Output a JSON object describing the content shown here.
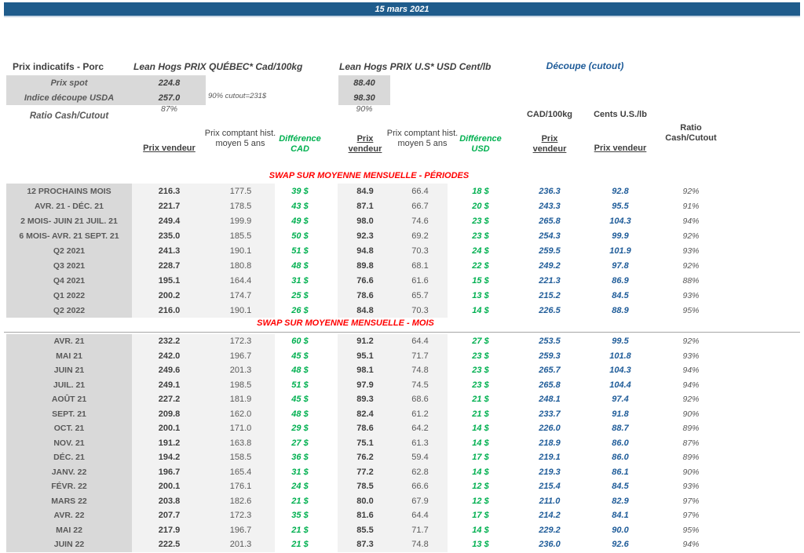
{
  "title_bar": {
    "date": "15 mars 2021"
  },
  "header": {
    "title": "Prix indicatifs - Porc",
    "quebec_title": "Lean Hogs PRIX QUÉBEC* Cad/100kg",
    "us_title": "Lean Hogs PRIX U.S* USD Cent/lb",
    "cutout_title": "Découpe (cutout)",
    "rows": [
      {
        "label": "Prix spot",
        "cad": "224.8",
        "usd": "88.40"
      },
      {
        "label": "Indice découpe USDA",
        "cad": "257.0",
        "usd": "98.30"
      }
    ],
    "cutout_note": "90% cutout=231$",
    "ratio_label": "Ratio Cash/Cutout",
    "ratio_cad": "87%",
    "ratio_usd": "90%"
  },
  "columns": {
    "cad_unit": "CAD/100kg",
    "us_unit": "Cents U.S./lb",
    "prix_vendeur": "Prix vendeur",
    "prix_comptant": "Prix comptant hist. moyen 5 ans",
    "difference_cad": "Différence CAD",
    "difference_usd": "Différence USD",
    "ratio": "Ratio Cash/Cutout"
  },
  "sections": [
    {
      "header": "SWAP SUR MOYENNE MENSUELLE - PÉRIODES",
      "rows": [
        [
          "12 PROCHAINS MOIS",
          "216.3",
          "177.5",
          "39 $",
          "84.9",
          "66.4",
          "18 $",
          "236.3",
          "92.8",
          "92%"
        ],
        [
          "AVR. 21 -  DÉC. 21",
          "221.7",
          "178.5",
          "43 $",
          "87.1",
          "66.7",
          "20 $",
          "243.3",
          "95.5",
          "91%"
        ],
        [
          "2 MOIS- JUIN 21 JUIL. 21",
          "249.4",
          "199.9",
          "49 $",
          "98.0",
          "74.6",
          "23 $",
          "265.8",
          "104.3",
          "94%"
        ],
        [
          "6 MOIS- AVR. 21 SEPT. 21",
          "235.0",
          "185.5",
          "50 $",
          "92.3",
          "69.2",
          "23 $",
          "254.3",
          "99.9",
          "92%"
        ],
        [
          "Q2 2021",
          "241.3",
          "190.1",
          "51 $",
          "94.8",
          "70.3",
          "24 $",
          "259.5",
          "101.9",
          "93%"
        ],
        [
          "Q3 2021",
          "228.7",
          "180.8",
          "48 $",
          "89.8",
          "68.1",
          "22 $",
          "249.2",
          "97.8",
          "92%"
        ],
        [
          "Q4 2021",
          "195.1",
          "164.4",
          "31 $",
          "76.6",
          "61.6",
          "15 $",
          "221.3",
          "86.9",
          "88%"
        ],
        [
          "Q1 2022",
          "200.2",
          "174.7",
          "25 $",
          "78.6",
          "65.7",
          "13 $",
          "215.2",
          "84.5",
          "93%"
        ],
        [
          "Q2 2022",
          "216.0",
          "190.1",
          "26 $",
          "84.8",
          "70.3",
          "14 $",
          "226.5",
          "88.9",
          "95%"
        ]
      ]
    },
    {
      "header": "SWAP SUR MOYENNE MENSUELLE - MOIS",
      "rows": [
        [
          "AVR. 21",
          "232.2",
          "172.3",
          "60 $",
          "91.2",
          "64.4",
          "27 $",
          "253.5",
          "99.5",
          "92%"
        ],
        [
          "MAI 21",
          "242.0",
          "196.7",
          "45 $",
          "95.1",
          "71.7",
          "23 $",
          "259.3",
          "101.8",
          "93%"
        ],
        [
          "JUIN 21",
          "249.6",
          "201.3",
          "48 $",
          "98.1",
          "74.8",
          "23 $",
          "265.7",
          "104.3",
          "94%"
        ],
        [
          "JUIL. 21",
          "249.1",
          "198.5",
          "51 $",
          "97.9",
          "74.5",
          "23 $",
          "265.8",
          "104.4",
          "94%"
        ],
        [
          "AOÛT 21",
          "227.2",
          "181.9",
          "45 $",
          "89.3",
          "68.6",
          "21 $",
          "248.1",
          "97.4",
          "92%"
        ],
        [
          "SEPT. 21",
          "209.8",
          "162.0",
          "48 $",
          "82.4",
          "61.2",
          "21 $",
          "233.7",
          "91.8",
          "90%"
        ],
        [
          "OCT. 21",
          "200.1",
          "171.0",
          "29 $",
          "78.6",
          "64.2",
          "14 $",
          "226.0",
          "88.7",
          "89%"
        ],
        [
          "NOV. 21",
          "191.2",
          "163.8",
          "27 $",
          "75.1",
          "61.3",
          "14 $",
          "218.9",
          "86.0",
          "87%"
        ],
        [
          "DÉC. 21",
          "194.2",
          "158.5",
          "36 $",
          "76.2",
          "59.4",
          "17 $",
          "219.1",
          "86.0",
          "89%"
        ],
        [
          "JANV. 22",
          "196.7",
          "165.4",
          "31 $",
          "77.2",
          "62.8",
          "14 $",
          "219.3",
          "86.1",
          "90%"
        ],
        [
          "FÉVR. 22",
          "200.1",
          "176.1",
          "24 $",
          "78.5",
          "66.6",
          "12 $",
          "215.4",
          "84.5",
          "93%"
        ],
        [
          "MARS 22",
          "203.8",
          "182.6",
          "21 $",
          "80.0",
          "67.9",
          "12 $",
          "211.0",
          "82.9",
          "97%"
        ],
        [
          "AVR. 22",
          "207.7",
          "172.3",
          "35 $",
          "81.6",
          "64.4",
          "17 $",
          "214.2",
          "84.1",
          "97%"
        ],
        [
          "MAI 22",
          "217.9",
          "196.7",
          "21 $",
          "85.5",
          "71.7",
          "14 $",
          "229.2",
          "90.0",
          "95%"
        ],
        [
          "JUIN 22",
          "222.5",
          "201.3",
          "21 $",
          "87.3",
          "74.8",
          "13 $",
          "236.0",
          "92.6",
          "94%"
        ]
      ]
    }
  ],
  "colors": {
    "title_bar_blue": "#1F5C8C",
    "cutout_blue": "#1F5C99",
    "difference_green": "#00B050",
    "section_red": "#FF0000",
    "label_grey_bg": "#D9D9D9",
    "band_grey_bg": "#F2F2F2",
    "text_grey": "#595959"
  }
}
